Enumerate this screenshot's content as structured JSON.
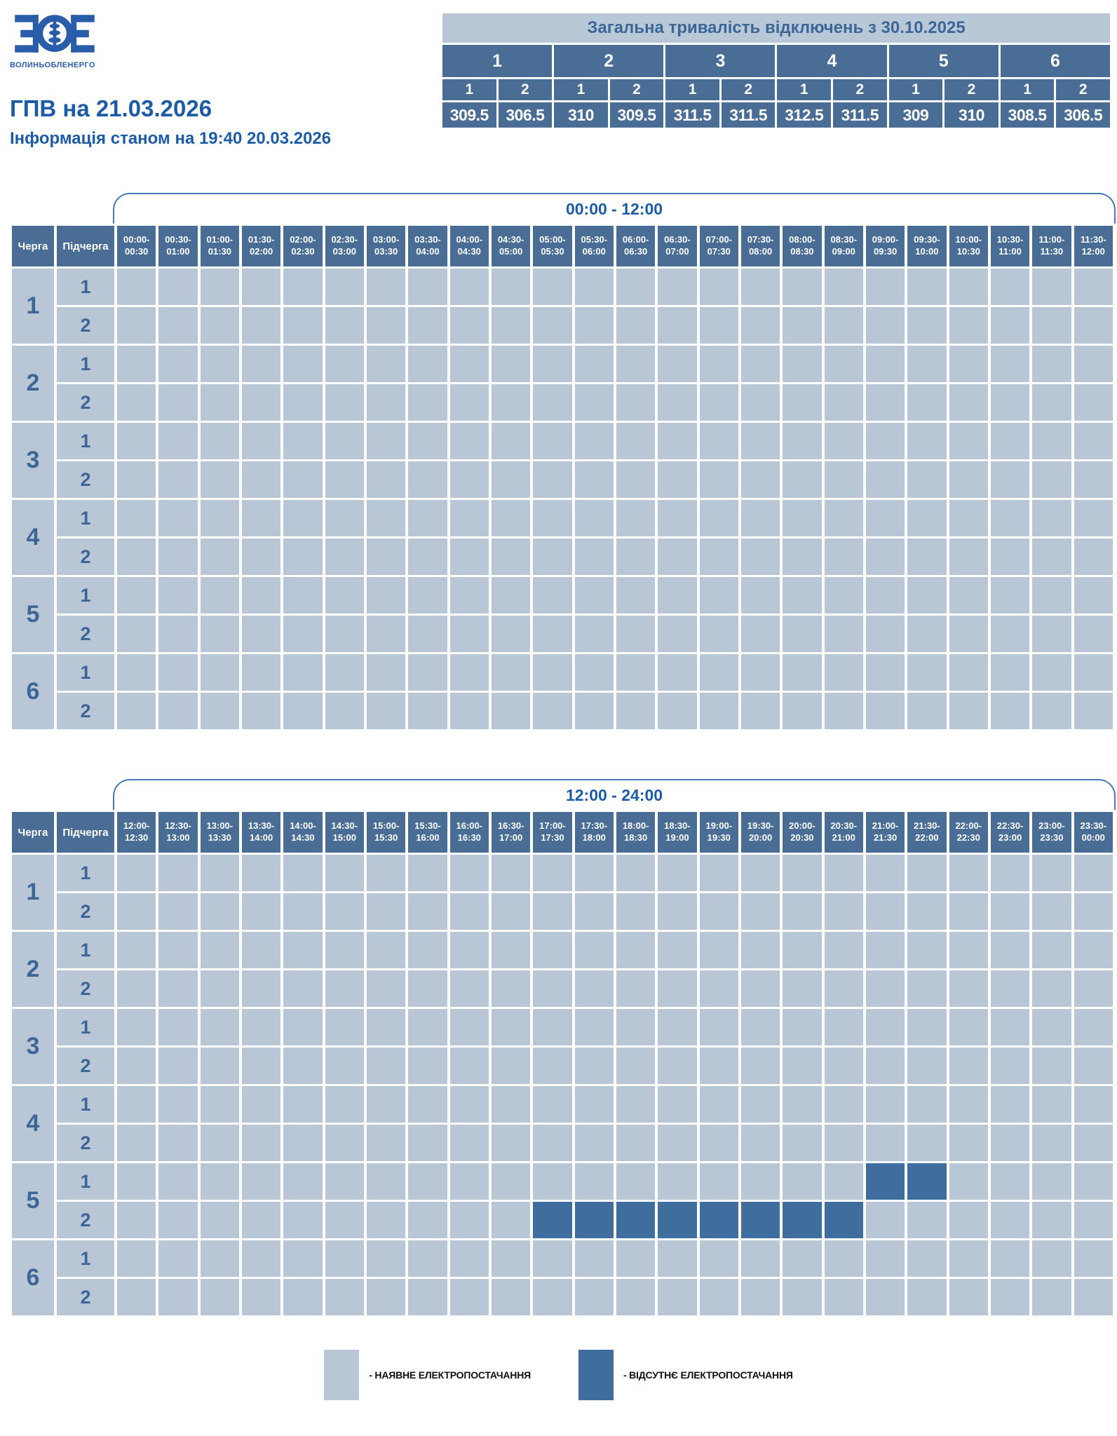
{
  "logo": {
    "acronym": "ЗОЕ",
    "company": "ВОЛИНЬОБЛЕНЕРГО"
  },
  "page": {
    "title": "ГПВ на 21.03.2026",
    "subtitle": "Інформація станом на 19:40 20.03.2026"
  },
  "summary_table": {
    "title": "Загальна тривалість відключень з 30.10.2025",
    "queues": [
      "1",
      "2",
      "3",
      "4",
      "5",
      "6"
    ],
    "subqueue_labels": [
      "1",
      "2"
    ],
    "values": [
      "309.5",
      "306.5",
      "310",
      "309.5",
      "311.5",
      "311.5",
      "312.5",
      "311.5",
      "309",
      "310",
      "308.5",
      "306.5"
    ]
  },
  "schedule": {
    "col_queue": "Черга",
    "col_subqueue": "Підчерга",
    "tables": [
      {
        "period_label": "00:00 - 12:00",
        "time_slots": [
          "00:00-00:30",
          "00:30-01:00",
          "01:00-01:30",
          "01:30-02:00",
          "02:00-02:30",
          "02:30-03:00",
          "03:00-03:30",
          "03:30-04:00",
          "04:00-04:30",
          "04:30-05:00",
          "05:00-05:30",
          "05:30-06:00",
          "06:00-06:30",
          "06:30-07:00",
          "07:00-07:30",
          "07:30-08:00",
          "08:00-08:30",
          "08:30-09:00",
          "09:00-09:30",
          "09:30-10:00",
          "10:00-10:30",
          "10:30-11:00",
          "11:00-11:30",
          "11:30-12:00"
        ],
        "queues": [
          {
            "label": "1",
            "subqueues": [
              {
                "label": "1",
                "outage_slots": []
              },
              {
                "label": "2",
                "outage_slots": []
              }
            ]
          },
          {
            "label": "2",
            "subqueues": [
              {
                "label": "1",
                "outage_slots": []
              },
              {
                "label": "2",
                "outage_slots": []
              }
            ]
          },
          {
            "label": "3",
            "subqueues": [
              {
                "label": "1",
                "outage_slots": []
              },
              {
                "label": "2",
                "outage_slots": []
              }
            ]
          },
          {
            "label": "4",
            "subqueues": [
              {
                "label": "1",
                "outage_slots": []
              },
              {
                "label": "2",
                "outage_slots": []
              }
            ]
          },
          {
            "label": "5",
            "subqueues": [
              {
                "label": "1",
                "outage_slots": []
              },
              {
                "label": "2",
                "outage_slots": []
              }
            ]
          },
          {
            "label": "6",
            "subqueues": [
              {
                "label": "1",
                "outage_slots": []
              },
              {
                "label": "2",
                "outage_slots": []
              }
            ]
          }
        ]
      },
      {
        "period_label": "12:00 - 24:00",
        "time_slots": [
          "12:00-12:30",
          "12:30-13:00",
          "13:00-13:30",
          "13:30-14:00",
          "14:00-14:30",
          "14:30-15:00",
          "15:00-15:30",
          "15:30-16:00",
          "16:00-16:30",
          "16:30-17:00",
          "17:00-17:30",
          "17:30-18:00",
          "18:00-18:30",
          "18:30-19:00",
          "19:00-19:30",
          "19:30-20:00",
          "20:00-20:30",
          "20:30-21:00",
          "21:00-21:30",
          "21:30-22:00",
          "22:00-22:30",
          "22:30-23:00",
          "23:00-23:30",
          "23:30-00:00"
        ],
        "queues": [
          {
            "label": "1",
            "subqueues": [
              {
                "label": "1",
                "outage_slots": []
              },
              {
                "label": "2",
                "outage_slots": []
              }
            ]
          },
          {
            "label": "2",
            "subqueues": [
              {
                "label": "1",
                "outage_slots": []
              },
              {
                "label": "2",
                "outage_slots": []
              }
            ]
          },
          {
            "label": "3",
            "subqueues": [
              {
                "label": "1",
                "outage_slots": []
              },
              {
                "label": "2",
                "outage_slots": []
              }
            ]
          },
          {
            "label": "4",
            "subqueues": [
              {
                "label": "1",
                "outage_slots": []
              },
              {
                "label": "2",
                "outage_slots": []
              }
            ]
          },
          {
            "label": "5",
            "subqueues": [
              {
                "label": "1",
                "outage_slots": [
                  18,
                  19
                ]
              },
              {
                "label": "2",
                "outage_slots": [
                  10,
                  11,
                  12,
                  13,
                  14,
                  15,
                  16,
                  17
                ]
              }
            ]
          },
          {
            "label": "6",
            "subqueues": [
              {
                "label": "1",
                "outage_slots": []
              },
              {
                "label": "2",
                "outage_slots": []
              }
            ]
          }
        ]
      }
    ]
  },
  "legend": {
    "available": "- НАЯВНЕ ЕЛЕКТРОПОСТАЧАННЯ",
    "unavailable": "- ВІДСУТНЄ ЕЛЕКТРОПОСТАЧАННЯ"
  },
  "colors": {
    "header_blue": "#4a6d96",
    "cell_available": "#b8c6d5",
    "cell_unavailable": "#3f6d9e",
    "accent_blue": "#1c5ca6",
    "logo_blue": "#2a5da9",
    "summary_title_bg": "#b9c8d6"
  }
}
